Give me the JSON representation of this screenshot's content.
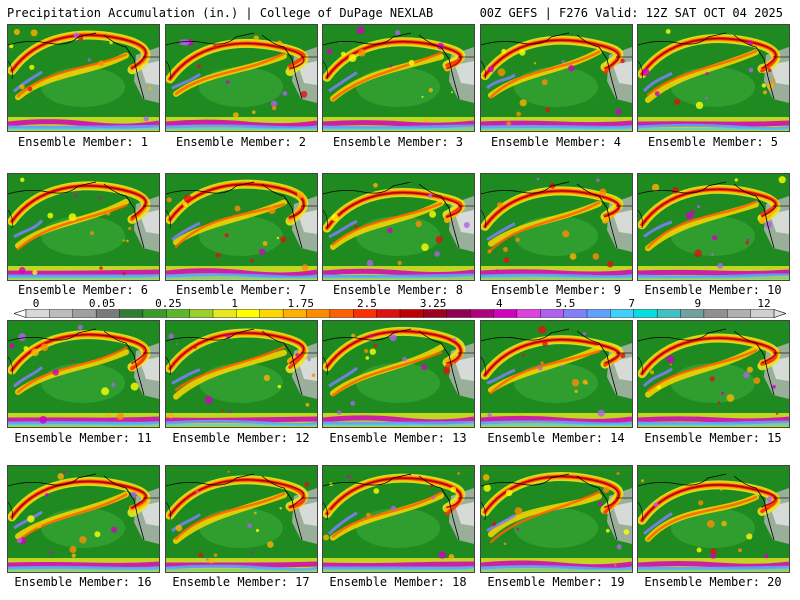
{
  "header": {
    "left": "Precipitation Accumulation (in.) | College of DuPage NEXLAB",
    "right": "00Z GEFS | F276 Valid: 12Z SAT OCT 04 2025"
  },
  "members": [
    {
      "label": "Ensemble Member: 1"
    },
    {
      "label": "Ensemble Member: 2"
    },
    {
      "label": "Ensemble Member: 3"
    },
    {
      "label": "Ensemble Member: 4"
    },
    {
      "label": "Ensemble Member: 5"
    },
    {
      "label": "Ensemble Member: 6"
    },
    {
      "label": "Ensemble Member: 7"
    },
    {
      "label": "Ensemble Member: 8"
    },
    {
      "label": "Ensemble Member: 9"
    },
    {
      "label": "Ensemble Member: 10"
    },
    {
      "label": "Ensemble Member: 11"
    },
    {
      "label": "Ensemble Member: 12"
    },
    {
      "label": "Ensemble Member: 13"
    },
    {
      "label": "Ensemble Member: 14"
    },
    {
      "label": "Ensemble Member: 15"
    },
    {
      "label": "Ensemble Member: 16"
    },
    {
      "label": "Ensemble Member: 17"
    },
    {
      "label": "Ensemble Member: 18"
    },
    {
      "label": "Ensemble Member: 19"
    },
    {
      "label": "Ensemble Member: 20"
    }
  ],
  "colorbar": {
    "tick_labels": [
      "0",
      "0.05",
      "0.25",
      "1",
      "1.75",
      "2.5",
      "3.25",
      "4",
      "5.5",
      "7",
      "9",
      "12"
    ],
    "colors": [
      "#d9d9d9",
      "#bdbdbd",
      "#a0a0a0",
      "#7a7a7a",
      "#2e7d32",
      "#3a9a2a",
      "#5ab82a",
      "#9ad02a",
      "#e8e820",
      "#ffff00",
      "#ffd700",
      "#ffb000",
      "#ff8c00",
      "#ff6000",
      "#ff3000",
      "#e01010",
      "#c00000",
      "#a00020",
      "#900050",
      "#b00080",
      "#d000c0",
      "#e040e0",
      "#b060f0",
      "#8080ff",
      "#60a0ff",
      "#40d0ff",
      "#00e0e0",
      "#40c0c0",
      "#70a0a0",
      "#909090",
      "#b0b0b0",
      "#d0d0d0"
    ]
  }
}
